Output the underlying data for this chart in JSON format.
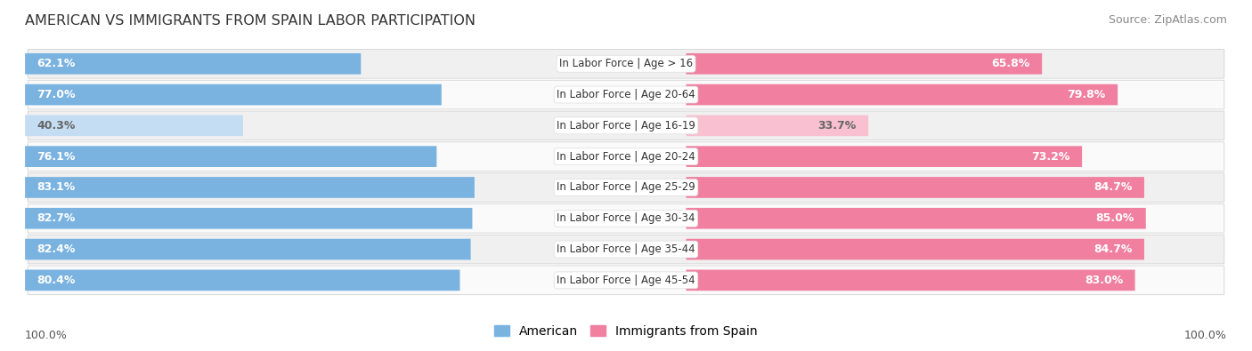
{
  "title": "AMERICAN VS IMMIGRANTS FROM SPAIN LABOR PARTICIPATION",
  "source": "Source: ZipAtlas.com",
  "categories": [
    "In Labor Force | Age > 16",
    "In Labor Force | Age 20-64",
    "In Labor Force | Age 16-19",
    "In Labor Force | Age 20-24",
    "In Labor Force | Age 25-29",
    "In Labor Force | Age 30-34",
    "In Labor Force | Age 35-44",
    "In Labor Force | Age 45-54"
  ],
  "american_values": [
    62.1,
    77.0,
    40.3,
    76.1,
    83.1,
    82.7,
    82.4,
    80.4
  ],
  "spain_values": [
    65.8,
    79.8,
    33.7,
    73.2,
    84.7,
    85.0,
    84.7,
    83.0
  ],
  "american_color": "#7ab3e0",
  "spain_color": "#f07fa0",
  "american_color_light": "#c5ddf2",
  "spain_color_light": "#f9c0d2",
  "bar_height": 0.68,
  "background_color": "#ffffff",
  "row_bg_even": "#f0f0f0",
  "row_bg_odd": "#fafafa",
  "legend_american": "American",
  "legend_spain": "Immigrants from Spain",
  "max_val": 100.0,
  "label_fontsize": 9.0,
  "title_fontsize": 11.5,
  "source_fontsize": 9.0,
  "cat_fontsize": 8.5
}
